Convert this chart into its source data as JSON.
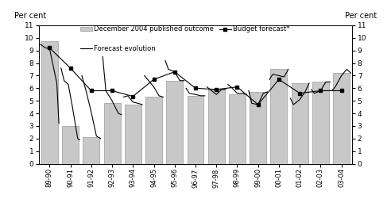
{
  "categories": [
    "89-90",
    "90-91",
    "91-92",
    "92-93",
    "93-94",
    "94-95",
    "95-96",
    "96-97",
    "97-98",
    "98-99",
    "99-00",
    "00-01",
    "01-02",
    "02-03",
    "03-04"
  ],
  "bar_values": [
    9.75,
    3.0,
    2.1,
    4.8,
    4.7,
    5.3,
    6.6,
    5.4,
    5.9,
    5.5,
    5.7,
    7.5,
    6.4,
    6.5,
    7.2
  ],
  "bar_color": "#c8c8c8",
  "bar_edgecolor": "#999999",
  "forecast_evolution_segments": [
    [
      -0.45,
      9.5,
      -0.2,
      9.2,
      0.0,
      9.15,
      0.35,
      6.4,
      0.45,
      3.2
    ],
    [
      0.55,
      7.6,
      0.7,
      6.6,
      0.9,
      6.3,
      1.1,
      4.5,
      1.35,
      2.0,
      1.45,
      1.9
    ],
    [
      1.55,
      7.0,
      1.75,
      5.8,
      2.0,
      4.1,
      2.25,
      2.2,
      2.45,
      2.0
    ],
    [
      2.55,
      8.5,
      2.7,
      5.8,
      3.0,
      5.0,
      3.3,
      4.0,
      3.45,
      3.9
    ],
    [
      3.55,
      5.3,
      3.75,
      5.4,
      4.0,
      4.9,
      4.25,
      4.8,
      4.45,
      4.7
    ],
    [
      4.55,
      7.0,
      4.7,
      6.7,
      5.0,
      6.1,
      5.25,
      5.4,
      5.45,
      5.3
    ],
    [
      5.55,
      8.2,
      5.7,
      7.5,
      6.0,
      7.3,
      6.25,
      6.6,
      6.45,
      6.6
    ],
    [
      6.55,
      6.0,
      6.7,
      5.6,
      7.0,
      5.5,
      7.25,
      5.4,
      7.45,
      5.4
    ],
    [
      7.55,
      6.1,
      7.7,
      5.9,
      8.0,
      5.5,
      8.25,
      5.9,
      8.45,
      5.9
    ],
    [
      8.55,
      6.3,
      8.7,
      6.1,
      9.0,
      5.6,
      9.25,
      5.6,
      9.45,
      5.5
    ],
    [
      9.55,
      5.8,
      9.7,
      4.8,
      10.0,
      4.7,
      10.25,
      5.6,
      10.45,
      5.7
    ],
    [
      10.55,
      6.7,
      10.7,
      7.1,
      11.0,
      7.0,
      11.25,
      6.9,
      11.45,
      7.5
    ],
    [
      11.55,
      5.2,
      11.7,
      4.7,
      12.0,
      5.1,
      12.25,
      5.7,
      12.45,
      6.4
    ],
    [
      12.55,
      5.9,
      12.7,
      5.6,
      13.0,
      5.8,
      13.25,
      6.5,
      13.45,
      6.5
    ],
    [
      13.55,
      5.8,
      13.7,
      6.1,
      14.0,
      7.0,
      14.25,
      7.5,
      14.45,
      7.2
    ]
  ],
  "budget_forecast_y": [
    9.2,
    7.6,
    5.8,
    5.8,
    5.35,
    6.7,
    7.3,
    6.0,
    5.9,
    6.1,
    4.7,
    6.7,
    5.6,
    5.8,
    5.8
  ],
  "budget_forecast_x": [
    0.0,
    1.0,
    2.0,
    3.0,
    4.0,
    5.0,
    6.0,
    7.0,
    8.0,
    9.0,
    10.0,
    11.0,
    12.0,
    13.0,
    14.0
  ],
  "ylim": [
    0,
    11
  ],
  "yticks": [
    0,
    1,
    2,
    3,
    4,
    5,
    6,
    7,
    8,
    9,
    10,
    11
  ],
  "ylabel_left": "Per cent",
  "ylabel_right": "Per cent",
  "line_color": "#000000",
  "legend_bar_label": "December 2004 published outcome",
  "legend_line_label": "Forecast evolution",
  "legend_budget_label": "Budget forecast*"
}
